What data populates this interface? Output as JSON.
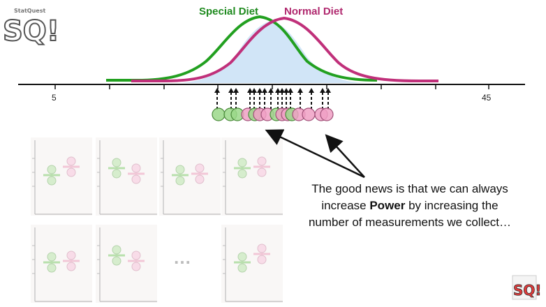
{
  "legend": {
    "special_diet": "Special Diet",
    "normal_diet": "Normal Diet"
  },
  "axis": {
    "min_label": "5",
    "max_label": "45"
  },
  "caption": {
    "line1": "The good news is that we can always",
    "line2_prefix": "increase ",
    "line2_bold": "Power",
    "line2_suffix": " by increasing the",
    "line3": "number of measurements we collect…"
  },
  "ellipsis": "…",
  "logo": {
    "big_text": "SQ!",
    "small_text": "StatQuest"
  },
  "colors": {
    "special_diet": "#22a020",
    "normal_diet": "#c0307a",
    "overlap_fill": "#cfe4f7",
    "special_point": "#9bd88a",
    "normal_point": "#f0a0c4"
  }
}
